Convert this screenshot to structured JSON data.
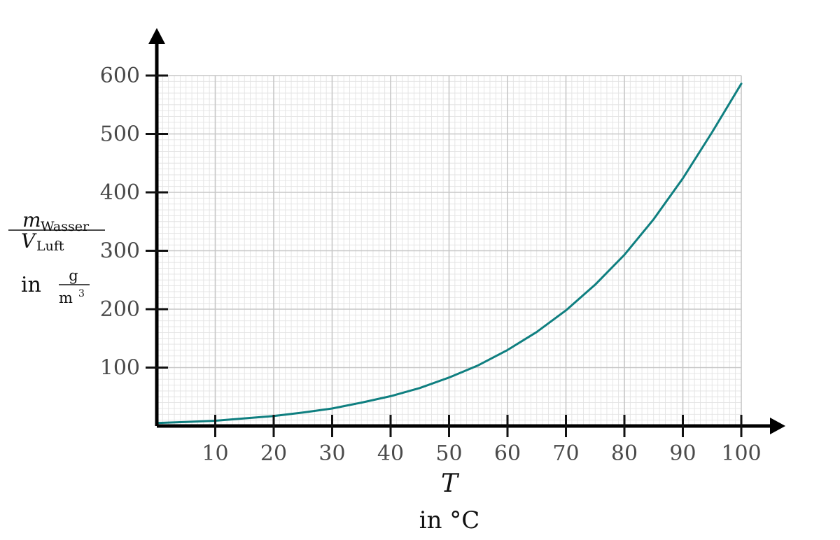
{
  "chart_data": {
    "type": "line",
    "x_title": "T",
    "x_unit": "in °C",
    "y_title": {
      "numerator_var": "m",
      "numerator_sub": "Wasser",
      "denominator_var": "V",
      "denominator_sub": "Luft",
      "unit_prefix": "in",
      "unit_num": "g",
      "unit_den": "m",
      "unit_den_exp": "3"
    },
    "xlim": [
      0,
      100
    ],
    "ylim": [
      0,
      600
    ],
    "x_ticks": [
      10,
      20,
      30,
      40,
      50,
      60,
      70,
      80,
      90,
      100
    ],
    "x_tick_labels": [
      "10",
      "20",
      "30",
      "40",
      "50",
      "60",
      "70",
      "80",
      "90",
      "100"
    ],
    "y_ticks": [
      100,
      200,
      300,
      400,
      500,
      600
    ],
    "y_tick_labels": [
      "100",
      "200",
      "300",
      "400",
      "500",
      "600"
    ],
    "grid": true,
    "series": [
      {
        "color": "#0f7f80",
        "points": [
          [
            0,
            5
          ],
          [
            5,
            7
          ],
          [
            10,
            9
          ],
          [
            15,
            13
          ],
          [
            20,
            17
          ],
          [
            25,
            23
          ],
          [
            30,
            30
          ],
          [
            35,
            40
          ],
          [
            40,
            51
          ],
          [
            45,
            65
          ],
          [
            50,
            83
          ],
          [
            55,
            104
          ],
          [
            60,
            130
          ],
          [
            65,
            161
          ],
          [
            70,
            198
          ],
          [
            75,
            242
          ],
          [
            80,
            293
          ],
          [
            85,
            354
          ],
          [
            90,
            424
          ],
          [
            95,
            503
          ],
          [
            100,
            586
          ]
        ]
      }
    ]
  }
}
